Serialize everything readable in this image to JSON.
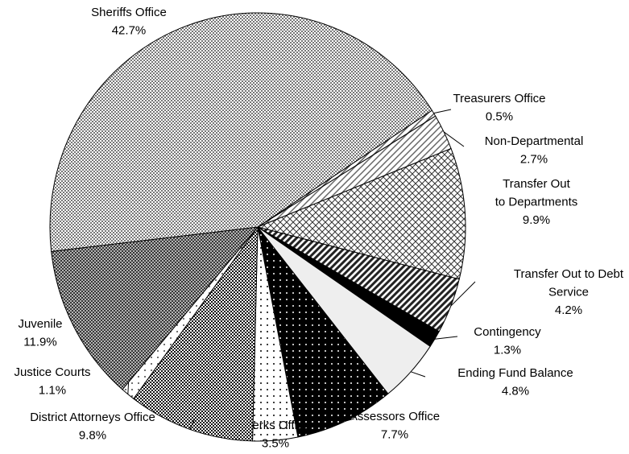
{
  "chart_data": {
    "type": "pie",
    "categories": [
      "Treasurers Office",
      "Non-Departmental",
      "Transfer Out to Departments",
      "Transfer Out to Debt Service",
      "Contingency",
      "Ending Fund Balance",
      "Assessors Office",
      "Clerks Office",
      "District Attorneys Office",
      "Justice Courts",
      "Juvenile",
      "Sheriffs Office"
    ],
    "values": [
      0.5,
      2.7,
      9.9,
      4.2,
      1.3,
      4.8,
      7.7,
      3.5,
      9.8,
      1.1,
      11.9,
      42.7
    ],
    "value_labels": [
      "0.5%",
      "2.7%",
      "9.9%",
      "4.2%",
      "1.3%",
      "4.8%",
      "7.7%",
      "3.5%",
      "9.8%",
      "1.1%",
      "11.9%",
      "42.7%"
    ],
    "colors": [
      "#555555",
      "#666666",
      "#333333",
      "#222222",
      "#000000",
      "#eeeeee",
      "#000000",
      "#000000",
      "#111111",
      "#444444",
      "#333333",
      "#777777"
    ]
  }
}
